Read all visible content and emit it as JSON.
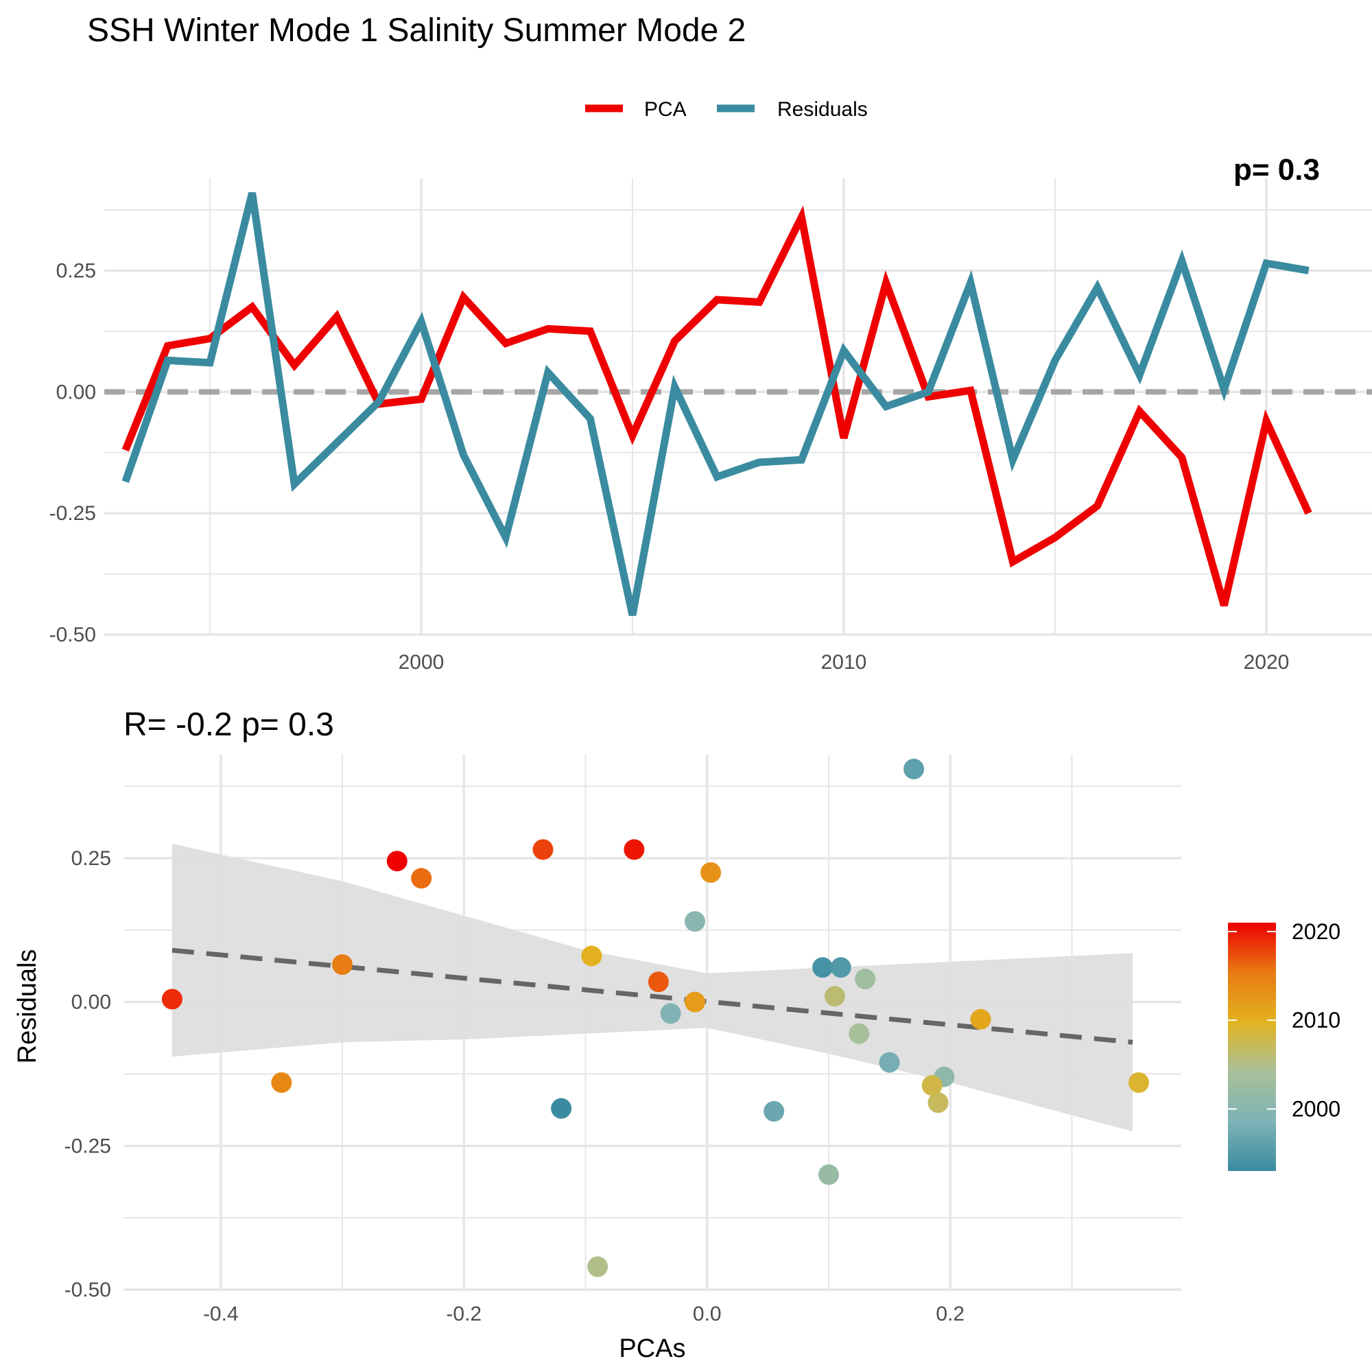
{
  "title": "SSH Winter Mode 1 Salinity Summer Mode 2",
  "colors": {
    "pca": "#EE0000",
    "residuals": "#3A8BA0",
    "zero_line": "#A6A6A6",
    "grid": "#E6E6E6",
    "ribbon": "#DEDEDE",
    "fit_line": "#666666",
    "gradient": [
      "#3A8BA0",
      "#7EB2B6",
      "#A8C19A",
      "#E3B21F",
      "#E87A12",
      "#EE0000"
    ]
  },
  "chart_data": [
    {
      "type": "line",
      "legend": {
        "placement": "top-center",
        "items": [
          {
            "label": "PCA",
            "color": "#EE0000"
          },
          {
            "label": "Residuals",
            "color": "#3A8BA0"
          }
        ]
      },
      "corner_annotation": "p= 0.3",
      "x": [
        1993,
        1994,
        1995,
        1996,
        1997,
        1998,
        1999,
        2000,
        2001,
        2002,
        2003,
        2004,
        2005,
        2006,
        2007,
        2008,
        2009,
        2010,
        2011,
        2012,
        2013,
        2014,
        2015,
        2016,
        2017,
        2018,
        2019,
        2020,
        2021
      ],
      "series": [
        {
          "name": "PCA",
          "color": "#EE0000",
          "values": [
            -0.12,
            0.095,
            0.11,
            0.175,
            0.055,
            0.155,
            -0.025,
            -0.015,
            0.195,
            0.1,
            0.13,
            0.125,
            -0.09,
            0.105,
            0.19,
            0.185,
            0.36,
            -0.095,
            0.225,
            -0.01,
            0.003,
            -0.35,
            -0.3,
            -0.235,
            -0.04,
            -0.135,
            -0.44,
            -0.06,
            -0.25
          ]
        },
        {
          "name": "Residuals",
          "color": "#3A8BA0",
          "values": [
            -0.185,
            0.065,
            0.06,
            0.41,
            -0.19,
            -0.105,
            -0.02,
            0.145,
            -0.13,
            -0.3,
            0.04,
            -0.055,
            -0.46,
            0.01,
            -0.175,
            -0.145,
            -0.14,
            0.085,
            -0.03,
            0.0,
            0.225,
            -0.14,
            0.065,
            0.215,
            0.035,
            0.27,
            0.005,
            0.265,
            0.25
          ]
        }
      ],
      "reference_line": {
        "y": 0,
        "style": "dashed"
      },
      "xlim": [
        1992.5,
        2022.5
      ],
      "ylim": [
        -0.5,
        0.44
      ],
      "x_ticks": [
        2000,
        2010,
        2020
      ],
      "y_ticks": [
        -0.5,
        -0.25,
        0.0,
        0.25
      ],
      "y_tick_labels": [
        "-0.50",
        "-0.25",
        "0.00",
        "0.25"
      ],
      "grid": true
    },
    {
      "type": "scatter",
      "title": "R= -0.2  p= 0.3",
      "xlabel": "PCAs",
      "ylabel": "Residuals",
      "xlim": [
        -0.48,
        0.39
      ],
      "ylim": [
        -0.5,
        0.43
      ],
      "x_ticks": [
        -0.4,
        -0.2,
        0.0,
        0.2
      ],
      "x_tick_labels": [
        "-0.4",
        "-0.2",
        "0.0",
        "0.2"
      ],
      "y_ticks": [
        -0.5,
        -0.25,
        0.0,
        0.25
      ],
      "y_tick_labels": [
        "-0.50",
        "-0.25",
        "0.00",
        "0.25"
      ],
      "grid": true,
      "points_note": "x = PCA value, y = Residuals value, color = year",
      "colorbar": {
        "placement": "right",
        "range": [
          1993,
          2021
        ],
        "ticks": [
          2000,
          2010,
          2020
        ]
      },
      "fit": {
        "style": "dashed",
        "x": [
          -0.44,
          0.35
        ],
        "y": [
          0.09,
          -0.07
        ]
      },
      "confidence_band": {
        "x": [
          -0.44,
          -0.3,
          -0.2,
          -0.1,
          0.0,
          0.1,
          0.2,
          0.35
        ],
        "upper": [
          0.275,
          0.21,
          0.15,
          0.09,
          0.05,
          0.06,
          0.07,
          0.085
        ],
        "lower": [
          -0.095,
          -0.07,
          -0.065,
          -0.055,
          -0.045,
          -0.09,
          -0.14,
          -0.225
        ]
      },
      "points": [
        {
          "year": 1993,
          "x": -0.12,
          "y": -0.185
        },
        {
          "year": 1994,
          "x": 0.095,
          "y": 0.06
        },
        {
          "year": 1995,
          "x": 0.11,
          "y": 0.06
        },
        {
          "year": 1996,
          "x": 0.17,
          "y": 0.405
        },
        {
          "year": 1997,
          "x": 0.055,
          "y": -0.19
        },
        {
          "year": 1998,
          "x": 0.15,
          "y": -0.105
        },
        {
          "year": 1999,
          "x": -0.03,
          "y": -0.02
        },
        {
          "year": 2000,
          "x": -0.01,
          "y": 0.14
        },
        {
          "year": 2001,
          "x": 0.195,
          "y": -0.13
        },
        {
          "year": 2002,
          "x": 0.1,
          "y": -0.3
        },
        {
          "year": 2003,
          "x": 0.13,
          "y": 0.04
        },
        {
          "year": 2004,
          "x": 0.125,
          "y": -0.055
        },
        {
          "year": 2005,
          "x": -0.09,
          "y": -0.46
        },
        {
          "year": 2006,
          "x": 0.105,
          "y": 0.01
        },
        {
          "year": 2007,
          "x": 0.19,
          "y": -0.175
        },
        {
          "year": 2008,
          "x": 0.185,
          "y": -0.145
        },
        {
          "year": 2009,
          "x": 0.355,
          "y": -0.14
        },
        {
          "year": 2010,
          "x": -0.095,
          "y": 0.08
        },
        {
          "year": 2011,
          "x": 0.225,
          "y": -0.03
        },
        {
          "year": 2012,
          "x": -0.01,
          "y": 0.0
        },
        {
          "year": 2013,
          "x": 0.003,
          "y": 0.225
        },
        {
          "year": 2014,
          "x": -0.35,
          "y": -0.14
        },
        {
          "year": 2015,
          "x": -0.3,
          "y": 0.065
        },
        {
          "year": 2016,
          "x": -0.235,
          "y": 0.215
        },
        {
          "year": 2017,
          "x": -0.04,
          "y": 0.035
        },
        {
          "year": 2018,
          "x": -0.135,
          "y": 0.265
        },
        {
          "year": 2019,
          "x": -0.44,
          "y": 0.005
        },
        {
          "year": 2020,
          "x": -0.06,
          "y": 0.265
        },
        {
          "year": 2021,
          "x": -0.255,
          "y": 0.245
        }
      ]
    }
  ]
}
